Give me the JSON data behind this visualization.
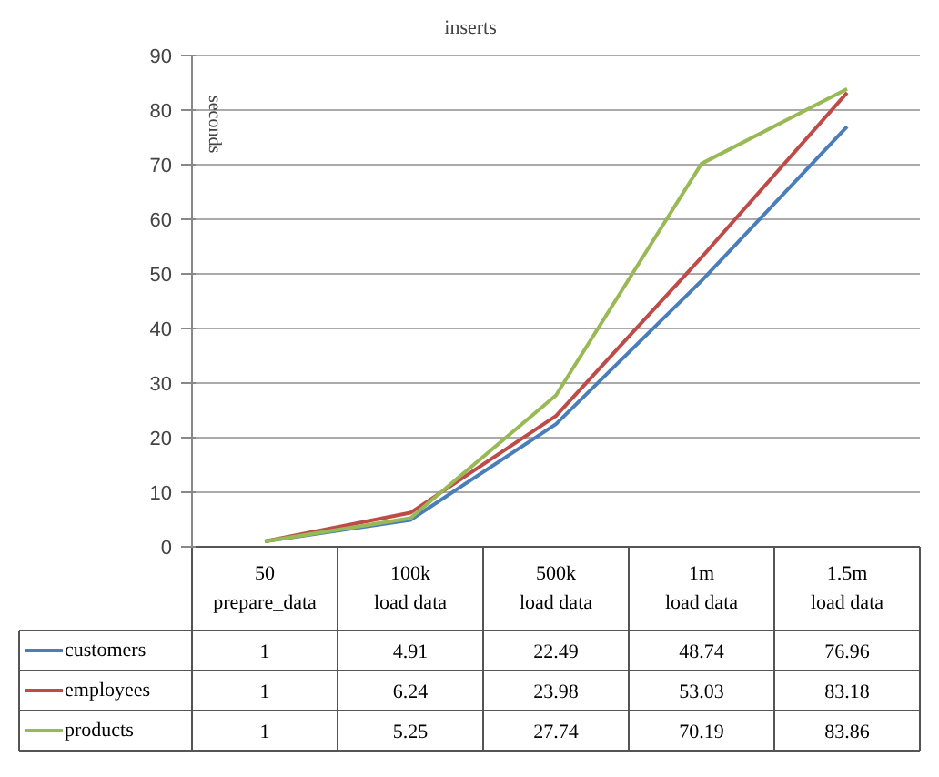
{
  "chart_data": {
    "type": "line",
    "title": "inserts",
    "ylabel": "seconds",
    "categories": [
      "50\nprepare_data",
      "100k\nload data",
      "500k\nload data",
      "1m\nload data",
      "1.5m\nload data"
    ],
    "series": [
      {
        "name": "customers",
        "color": "#4a7ebb",
        "values": [
          1,
          4.91,
          22.49,
          48.74,
          76.96
        ]
      },
      {
        "name": "employees",
        "color": "#be4b48",
        "values": [
          1,
          6.24,
          23.98,
          53.03,
          83.18
        ]
      },
      {
        "name": "products",
        "color": "#98b954",
        "values": [
          1,
          5.25,
          27.74,
          70.19,
          83.86
        ]
      }
    ],
    "ylim": [
      0,
      90
    ],
    "yticks": [
      0,
      10,
      20,
      30,
      40,
      50,
      60,
      70,
      80,
      90
    ],
    "grid": "y",
    "data_labels": true,
    "legend": "bottom"
  }
}
